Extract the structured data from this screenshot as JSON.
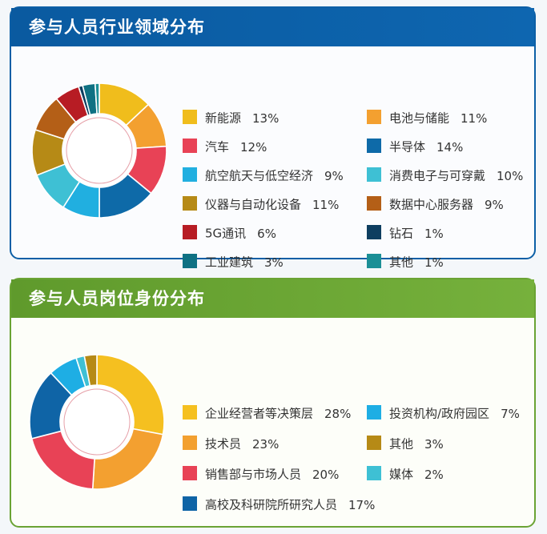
{
  "charts": [
    {
      "title": "参与人员行业领域分布",
      "items": [
        {
          "label": "新能源",
          "pct": "13%",
          "value": 13,
          "color": "#f0bd1c"
        },
        {
          "label": "电池与储能",
          "pct": "11%",
          "value": 11,
          "color": "#f3a030"
        },
        {
          "label": "汽车",
          "pct": "12%",
          "value": 12,
          "color": "#e84256"
        },
        {
          "label": "半导体",
          "pct": "14%",
          "value": 14,
          "color": "#0e6aa8"
        },
        {
          "label": "航空航天与低空经济",
          "pct": "9%",
          "value": 9,
          "color": "#21afe0"
        },
        {
          "label": "消费电子与可穿戴",
          "pct": "10%",
          "value": 10,
          "color": "#3ec0d4"
        },
        {
          "label": "仪器与自动化设备",
          "pct": "11%",
          "value": 11,
          "color": "#b68a16"
        },
        {
          "label": "数据中心服务器",
          "pct": "9%",
          "value": 9,
          "color": "#b45f17"
        },
        {
          "label": "5G通讯",
          "pct": "6%",
          "value": 6,
          "color": "#b71c24"
        },
        {
          "label": "钻石",
          "pct": "1%",
          "value": 1,
          "color": "#0e3e60"
        },
        {
          "label": "工业建筑",
          "pct": "3%",
          "value": 3,
          "color": "#0f7183"
        },
        {
          "label": "其他",
          "pct": "1%",
          "value": 1,
          "color": "#1b8f96"
        }
      ]
    },
    {
      "title": "参与人员岗位身份分布",
      "items": [
        {
          "label": "企业经营者等决策层",
          "pct": "28%",
          "value": 28,
          "color": "#f5c020"
        },
        {
          "label": "投资机构/政府园区",
          "pct": "7%",
          "value": 7,
          "color": "#1eaee4"
        },
        {
          "label": "技术员",
          "pct": "23%",
          "value": 23,
          "color": "#f3a030"
        },
        {
          "label": "其他",
          "pct": "3%",
          "value": 3,
          "color": "#b68a16"
        },
        {
          "label": "销售部与市场人员",
          "pct": "20%",
          "value": 20,
          "color": "#e84256"
        },
        {
          "label": "媒体",
          "pct": "2%",
          "value": 2,
          "color": "#3ec0d4"
        },
        {
          "label": "高校及科研院所研究人员",
          "pct": "17%",
          "value": 17,
          "color": "#0f64a6"
        }
      ]
    }
  ],
  "chart_data": [
    {
      "type": "pie",
      "title": "参与人员行业领域分布",
      "categories": [
        "新能源",
        "电池与储能",
        "汽车",
        "半导体",
        "航空航天与低空经济",
        "消费电子与可穿戴",
        "仪器与自动化设备",
        "数据中心服务器",
        "5G通讯",
        "钻石",
        "工业建筑",
        "其他"
      ],
      "values": [
        13,
        11,
        12,
        14,
        9,
        10,
        11,
        9,
        6,
        1,
        3,
        1
      ],
      "ring_order": [
        "新能源",
        "电池与储能",
        "汽车",
        "半导体",
        "航空航天与低空经济",
        "消费电子与可穿戴",
        "仪器与自动化设备",
        "数据中心服务器",
        "5G通讯",
        "钻石",
        "工业建筑",
        "其他"
      ]
    },
    {
      "type": "pie",
      "title": "参与人员岗位身份分布",
      "categories": [
        "企业经营者等决策层",
        "投资机构/政府园区",
        "技术员",
        "其他",
        "销售部与市场人员",
        "媒体",
        "高校及科研院所研究人员"
      ],
      "values": [
        28,
        7,
        23,
        3,
        20,
        2,
        17
      ],
      "ring_order": [
        "企业经营者等决策层",
        "技术员",
        "销售部与市场人员",
        "高校及科研院所研究人员",
        "投资机构/政府园区",
        "媒体",
        "其他"
      ]
    }
  ]
}
